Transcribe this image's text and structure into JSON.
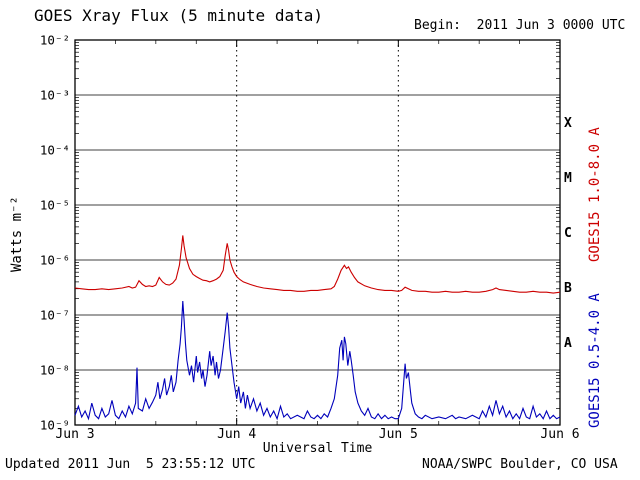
{
  "header": {
    "title": "GOES Xray Flux (5 minute data)",
    "begin_label": "Begin:  2011 Jun 3 0000 UTC"
  },
  "axes": {
    "ylabel": "Watts m⁻²",
    "xlabel": "Universal Time"
  },
  "right_labels": {
    "long_channel": "GOES15 1.0-8.0 A",
    "short_channel": "GOES15 0.5-4.0 A"
  },
  "footer": {
    "updated": "Updated 2011 Jun  5 23:55:12 UTC",
    "credit": "NOAA/SWPC Boulder, CO USA"
  },
  "chart_data": {
    "type": "line",
    "title": "GOES Xray Flux (5 minute data)",
    "xlabel": "Universal Time",
    "ylabel": "Watts m⁻²",
    "x_unit": "hours since 2011 Jun 3 0000 UTC",
    "x_range_hours": [
      0,
      72
    ],
    "y_log_range_exponents": [
      -2,
      -9
    ],
    "y_scale": "log",
    "x_ticks": [
      {
        "hour": 0,
        "label": "Jun 3"
      },
      {
        "hour": 24,
        "label": "Jun 4"
      },
      {
        "hour": 48,
        "label": "Jun 5"
      },
      {
        "hour": 72,
        "label": "Jun 6"
      }
    ],
    "y_ticks": [
      {
        "exp": -2,
        "label": "10⁻²"
      },
      {
        "exp": -3,
        "label": "10⁻³"
      },
      {
        "exp": -4,
        "label": "10⁻⁴"
      },
      {
        "exp": -5,
        "label": "10⁻⁵"
      },
      {
        "exp": -6,
        "label": "10⁻⁶"
      },
      {
        "exp": -7,
        "label": "10⁻⁷"
      },
      {
        "exp": -8,
        "label": "10⁻⁸"
      },
      {
        "exp": -9,
        "label": "10⁻⁹"
      }
    ],
    "flare_classes": [
      {
        "label": "X",
        "center_exp": -3.5
      },
      {
        "label": "M",
        "center_exp": -4.5
      },
      {
        "label": "C",
        "center_exp": -5.5
      },
      {
        "label": "B",
        "center_exp": -6.5
      },
      {
        "label": "A",
        "center_exp": -7.5
      }
    ],
    "grid": {
      "h_exponents": [
        -3,
        -4,
        -5,
        -6,
        -7,
        -8
      ],
      "v_hours": [
        24,
        48
      ]
    },
    "series": [
      {
        "name": "GOES15 1.0-8.0 A",
        "color": "#cc0000",
        "points": [
          [
            0,
            3.1e-07
          ],
          [
            1,
            3e-07
          ],
          [
            2,
            2.9e-07
          ],
          [
            3,
            2.9e-07
          ],
          [
            4,
            3e-07
          ],
          [
            5,
            2.9e-07
          ],
          [
            6,
            3e-07
          ],
          [
            7,
            3.1e-07
          ],
          [
            8,
            3.3e-07
          ],
          [
            8.5,
            3.1e-07
          ],
          [
            9,
            3.2e-07
          ],
          [
            9.5,
            4.2e-07
          ],
          [
            10,
            3.6e-07
          ],
          [
            10.5,
            3.3e-07
          ],
          [
            11,
            3.4e-07
          ],
          [
            11.5,
            3.3e-07
          ],
          [
            12,
            3.5e-07
          ],
          [
            12.5,
            4.8e-07
          ],
          [
            13,
            4e-07
          ],
          [
            13.5,
            3.6e-07
          ],
          [
            14,
            3.5e-07
          ],
          [
            14.5,
            3.8e-07
          ],
          [
            15,
            4.5e-07
          ],
          [
            15.5,
            8e-07
          ],
          [
            15.8,
            1.6e-06
          ],
          [
            16,
            2.8e-06
          ],
          [
            16.2,
            1.8e-06
          ],
          [
            16.5,
            1.1e-06
          ],
          [
            17,
            7e-07
          ],
          [
            17.5,
            5.5e-07
          ],
          [
            18,
            5e-07
          ],
          [
            18.5,
            4.6e-07
          ],
          [
            19,
            4.3e-07
          ],
          [
            19.5,
            4.2e-07
          ],
          [
            20,
            4e-07
          ],
          [
            20.5,
            4.2e-07
          ],
          [
            21,
            4.5e-07
          ],
          [
            21.5,
            5e-07
          ],
          [
            22,
            6.5e-07
          ],
          [
            22.3,
            1.2e-06
          ],
          [
            22.6,
            2e-06
          ],
          [
            22.8,
            1.5e-06
          ],
          [
            23,
            1e-06
          ],
          [
            23.3,
            7.5e-07
          ],
          [
            23.6,
            6e-07
          ],
          [
            24,
            5e-07
          ],
          [
            24.5,
            4.4e-07
          ],
          [
            25,
            4e-07
          ],
          [
            26,
            3.6e-07
          ],
          [
            27,
            3.3e-07
          ],
          [
            28,
            3.1e-07
          ],
          [
            29,
            3e-07
          ],
          [
            30,
            2.9e-07
          ],
          [
            31,
            2.8e-07
          ],
          [
            32,
            2.8e-07
          ],
          [
            33,
            2.7e-07
          ],
          [
            34,
            2.7e-07
          ],
          [
            35,
            2.8e-07
          ],
          [
            36,
            2.8e-07
          ],
          [
            37,
            2.9e-07
          ],
          [
            38,
            3e-07
          ],
          [
            38.5,
            3.3e-07
          ],
          [
            39,
            4.5e-07
          ],
          [
            39.5,
            6.5e-07
          ],
          [
            40,
            8e-07
          ],
          [
            40.3,
            7e-07
          ],
          [
            40.6,
            7.5e-07
          ],
          [
            41,
            6e-07
          ],
          [
            41.5,
            4.8e-07
          ],
          [
            42,
            4e-07
          ],
          [
            43,
            3.4e-07
          ],
          [
            44,
            3.1e-07
          ],
          [
            45,
            2.9e-07
          ],
          [
            46,
            2.8e-07
          ],
          [
            47,
            2.8e-07
          ],
          [
            48,
            2.7e-07
          ],
          [
            48.5,
            2.8e-07
          ],
          [
            49,
            3.2e-07
          ],
          [
            49.5,
            3e-07
          ],
          [
            50,
            2.8e-07
          ],
          [
            51,
            2.7e-07
          ],
          [
            52,
            2.7e-07
          ],
          [
            53,
            2.6e-07
          ],
          [
            54,
            2.6e-07
          ],
          [
            55,
            2.7e-07
          ],
          [
            56,
            2.6e-07
          ],
          [
            57,
            2.6e-07
          ],
          [
            58,
            2.7e-07
          ],
          [
            59,
            2.6e-07
          ],
          [
            60,
            2.6e-07
          ],
          [
            61,
            2.7e-07
          ],
          [
            62,
            2.9e-07
          ],
          [
            62.5,
            3.1e-07
          ],
          [
            63,
            2.9e-07
          ],
          [
            64,
            2.8e-07
          ],
          [
            65,
            2.7e-07
          ],
          [
            66,
            2.6e-07
          ],
          [
            67,
            2.6e-07
          ],
          [
            68,
            2.7e-07
          ],
          [
            69,
            2.6e-07
          ],
          [
            70,
            2.6e-07
          ],
          [
            71,
            2.5e-07
          ],
          [
            72,
            2.6e-07
          ]
        ]
      },
      {
        "name": "GOES15 0.5-4.0 A",
        "color": "#0000bb",
        "points": [
          [
            0,
            1.5e-09
          ],
          [
            0.5,
            2.2e-09
          ],
          [
            1,
            1.4e-09
          ],
          [
            1.5,
            1.8e-09
          ],
          [
            2,
            1.3e-09
          ],
          [
            2.5,
            2.5e-09
          ],
          [
            3,
            1.5e-09
          ],
          [
            3.5,
            1.3e-09
          ],
          [
            4,
            2e-09
          ],
          [
            4.5,
            1.4e-09
          ],
          [
            5,
            1.6e-09
          ],
          [
            5.5,
            2.8e-09
          ],
          [
            6,
            1.5e-09
          ],
          [
            6.5,
            1.3e-09
          ],
          [
            7,
            1.8e-09
          ],
          [
            7.5,
            1.4e-09
          ],
          [
            8,
            2.2e-09
          ],
          [
            8.5,
            1.6e-09
          ],
          [
            9,
            2.5e-09
          ],
          [
            9.2,
            1.1e-08
          ],
          [
            9.4,
            2e-09
          ],
          [
            10,
            1.8e-09
          ],
          [
            10.5,
            3e-09
          ],
          [
            11,
            2e-09
          ],
          [
            11.5,
            2.6e-09
          ],
          [
            12,
            3.5e-09
          ],
          [
            12.3,
            6e-09
          ],
          [
            12.6,
            3e-09
          ],
          [
            13,
            4.5e-09
          ],
          [
            13.3,
            7e-09
          ],
          [
            13.6,
            3.5e-09
          ],
          [
            14,
            5e-09
          ],
          [
            14.3,
            8e-09
          ],
          [
            14.6,
            4e-09
          ],
          [
            15,
            6e-09
          ],
          [
            15.3,
            1.5e-08
          ],
          [
            15.6,
            3e-08
          ],
          [
            15.8,
            6e-08
          ],
          [
            16,
            1.8e-07
          ],
          [
            16.2,
            8e-08
          ],
          [
            16.4,
            3e-08
          ],
          [
            16.6,
            1.5e-08
          ],
          [
            17,
            8e-09
          ],
          [
            17.3,
            1.2e-08
          ],
          [
            17.6,
            6e-09
          ],
          [
            18,
            1.8e-08
          ],
          [
            18.2,
            9e-09
          ],
          [
            18.5,
            1.4e-08
          ],
          [
            18.8,
            7e-09
          ],
          [
            19,
            1e-08
          ],
          [
            19.3,
            5e-09
          ],
          [
            19.6,
            8e-09
          ],
          [
            20,
            2.2e-08
          ],
          [
            20.2,
            1.2e-08
          ],
          [
            20.5,
            1.8e-08
          ],
          [
            20.8,
            8e-09
          ],
          [
            21,
            1.4e-08
          ],
          [
            21.3,
            7e-09
          ],
          [
            21.6,
            1e-08
          ],
          [
            22,
            2.5e-08
          ],
          [
            22.3,
            5e-08
          ],
          [
            22.6,
            1.1e-07
          ],
          [
            22.8,
            6e-08
          ],
          [
            23,
            2.5e-08
          ],
          [
            23.3,
            1.2e-08
          ],
          [
            23.6,
            6e-09
          ],
          [
            24,
            3e-09
          ],
          [
            24.3,
            5e-09
          ],
          [
            24.6,
            2.5e-09
          ],
          [
            25,
            4e-09
          ],
          [
            25.3,
            2e-09
          ],
          [
            25.6,
            3.5e-09
          ],
          [
            26,
            2e-09
          ],
          [
            26.5,
            3e-09
          ],
          [
            27,
            1.8e-09
          ],
          [
            27.5,
            2.5e-09
          ],
          [
            28,
            1.5e-09
          ],
          [
            28.5,
            2e-09
          ],
          [
            29,
            1.4e-09
          ],
          [
            29.5,
            1.8e-09
          ],
          [
            30,
            1.3e-09
          ],
          [
            30.5,
            2.2e-09
          ],
          [
            31,
            1.4e-09
          ],
          [
            31.5,
            1.6e-09
          ],
          [
            32,
            1.3e-09
          ],
          [
            33,
            1.5e-09
          ],
          [
            34,
            1.3e-09
          ],
          [
            34.5,
            1.8e-09
          ],
          [
            35,
            1.4e-09
          ],
          [
            35.5,
            1.3e-09
          ],
          [
            36,
            1.5e-09
          ],
          [
            36.5,
            1.3e-09
          ],
          [
            37,
            1.6e-09
          ],
          [
            37.5,
            1.4e-09
          ],
          [
            38,
            2e-09
          ],
          [
            38.5,
            3e-09
          ],
          [
            39,
            8e-09
          ],
          [
            39.3,
            2.5e-08
          ],
          [
            39.6,
            3.5e-08
          ],
          [
            39.8,
            1.5e-08
          ],
          [
            40,
            4e-08
          ],
          [
            40.2,
            3e-08
          ],
          [
            40.5,
            1.2e-08
          ],
          [
            40.8,
            2.2e-08
          ],
          [
            41,
            1.5e-08
          ],
          [
            41.3,
            8e-09
          ],
          [
            41.6,
            4e-09
          ],
          [
            42,
            2.5e-09
          ],
          [
            42.5,
            1.8e-09
          ],
          [
            43,
            1.5e-09
          ],
          [
            43.5,
            2e-09
          ],
          [
            44,
            1.4e-09
          ],
          [
            44.5,
            1.3e-09
          ],
          [
            45,
            1.6e-09
          ],
          [
            45.5,
            1.3e-09
          ],
          [
            46,
            1.5e-09
          ],
          [
            46.5,
            1.3e-09
          ],
          [
            47,
            1.4e-09
          ],
          [
            47.5,
            1.3e-09
          ],
          [
            48,
            1.3e-09
          ],
          [
            48.5,
            2e-09
          ],
          [
            49,
            1.3e-08
          ],
          [
            49.2,
            7e-09
          ],
          [
            49.5,
            9e-09
          ],
          [
            49.8,
            4e-09
          ],
          [
            50,
            2.5e-09
          ],
          [
            50.5,
            1.6e-09
          ],
          [
            51,
            1.4e-09
          ],
          [
            51.5,
            1.3e-09
          ],
          [
            52,
            1.5e-09
          ],
          [
            53,
            1.3e-09
          ],
          [
            54,
            1.4e-09
          ],
          [
            55,
            1.3e-09
          ],
          [
            56,
            1.5e-09
          ],
          [
            56.5,
            1.3e-09
          ],
          [
            57,
            1.4e-09
          ],
          [
            58,
            1.3e-09
          ],
          [
            59,
            1.5e-09
          ],
          [
            60,
            1.3e-09
          ],
          [
            60.5,
            1.8e-09
          ],
          [
            61,
            1.4e-09
          ],
          [
            61.5,
            2.2e-09
          ],
          [
            62,
            1.5e-09
          ],
          [
            62.5,
            2.8e-09
          ],
          [
            63,
            1.6e-09
          ],
          [
            63.5,
            2.2e-09
          ],
          [
            64,
            1.4e-09
          ],
          [
            64.5,
            1.8e-09
          ],
          [
            65,
            1.3e-09
          ],
          [
            65.5,
            1.6e-09
          ],
          [
            66,
            1.3e-09
          ],
          [
            66.5,
            2e-09
          ],
          [
            67,
            1.4e-09
          ],
          [
            67.5,
            1.3e-09
          ],
          [
            68,
            2.2e-09
          ],
          [
            68.5,
            1.4e-09
          ],
          [
            69,
            1.6e-09
          ],
          [
            69.5,
            1.3e-09
          ],
          [
            70,
            1.8e-09
          ],
          [
            70.5,
            1.3e-09
          ],
          [
            71,
            1.5e-09
          ],
          [
            71.5,
            1.3e-09
          ],
          [
            72,
            1.4e-09
          ]
        ]
      }
    ]
  }
}
